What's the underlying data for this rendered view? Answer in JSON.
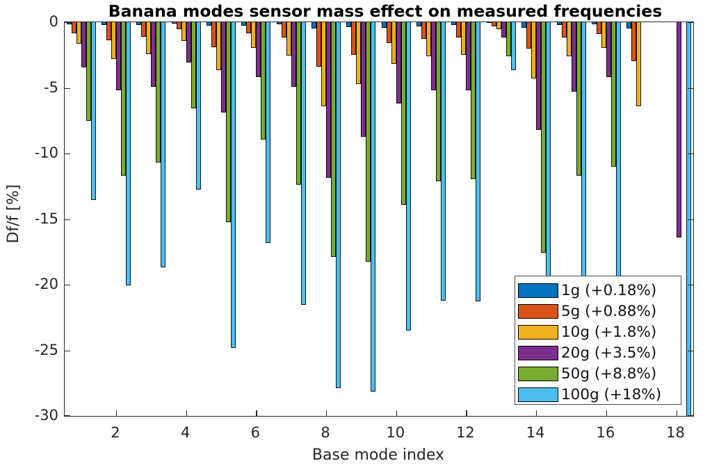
{
  "title": "Banana modes sensor mass effect on measured frequencies",
  "chart_data": {
    "type": "bar",
    "title": "Banana modes sensor mass effect on measured frequencies",
    "xlabel": "Base mode index",
    "ylabel": "Df/f [%]",
    "ylim": [
      -30,
      0
    ],
    "xlim": [
      0.53,
      18.5
    ],
    "grid": false,
    "legend_position": "inside lower right",
    "xticks": [
      2,
      4,
      6,
      8,
      10,
      12,
      14,
      16,
      18
    ],
    "yticks": [
      0,
      -5,
      -10,
      -15,
      -20,
      -25,
      -30
    ],
    "categories": [
      1,
      2,
      3,
      4,
      5,
      6,
      7,
      8,
      9,
      10,
      11,
      12,
      13,
      14,
      15,
      16,
      17,
      18
    ],
    "series": [
      {
        "name": "1g (+0.18%)",
        "color": "#0072BD",
        "values": [
          -0.16,
          -0.23,
          -0.21,
          -0.11,
          -0.28,
          -0.24,
          -0.17,
          -0.48,
          -0.39,
          -0.4,
          -0.3,
          -0.21,
          -0.05,
          -0.43,
          -0.21,
          -0.17,
          -0.46,
          0
        ]
      },
      {
        "name": "5g (+0.88%)",
        "color": "#D95319",
        "values": [
          -0.87,
          -1.35,
          -1.1,
          -0.55,
          -1.88,
          -0.83,
          -1.19,
          -3.39,
          -2.51,
          -1.6,
          -1.28,
          -1.19,
          -0.3,
          -2.02,
          -1.19,
          -0.9,
          -2.96,
          0
        ]
      },
      {
        "name": "10g (+1.8%)",
        "color": "#EDB120",
        "values": [
          -1.66,
          -2.78,
          -2.43,
          -1.45,
          -3.67,
          -1.98,
          -2.55,
          -6.42,
          -4.7,
          -3.2,
          -2.6,
          -2.48,
          -0.53,
          -4.29,
          -2.6,
          -1.95,
          -6.4,
          0
        ]
      },
      {
        "name": "20g (+3.5%)",
        "color": "#7E2F8E",
        "values": [
          -3.46,
          -5.18,
          -4.9,
          -3.08,
          -6.87,
          -4.2,
          -4.9,
          -11.85,
          -8.74,
          -6.2,
          -5.18,
          -5.18,
          -1.19,
          -8.2,
          -5.27,
          -4.2,
          0,
          -16.4
        ]
      },
      {
        "name": "50g (+8.8%)",
        "color": "#77AC30",
        "values": [
          -7.5,
          -11.67,
          -10.7,
          -6.57,
          -15.23,
          -8.92,
          -12.39,
          -17.9,
          -18.26,
          -13.9,
          -12.12,
          -11.94,
          -2.6,
          -17.55,
          -11.68,
          -11.0,
          0,
          0
        ]
      },
      {
        "name": "100g (+18%)",
        "color": "#4DBEEE",
        "values": [
          -13.54,
          -20.04,
          -18.7,
          -12.74,
          -24.84,
          -16.83,
          -21.56,
          -27.87,
          -28.14,
          -23.51,
          -21.2,
          -21.29,
          -3.67,
          -27.5,
          -20.8,
          -19.8,
          0,
          -30.5
        ]
      }
    ]
  }
}
